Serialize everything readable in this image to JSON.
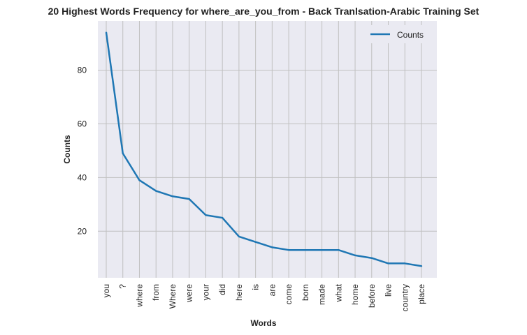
{
  "chart_data": {
    "type": "line",
    "title": "20 Highest Words Frequency for where_are_you_from - Back Tranlsation-Arabic Training Set",
    "xlabel": "Words",
    "ylabel": "Counts",
    "categories": [
      "you",
      "?",
      "where",
      "from",
      "Where",
      "were",
      "your",
      "did",
      "here",
      "is",
      "are",
      "come",
      "born",
      "made",
      "what",
      "home",
      "before",
      "live",
      "country",
      "place"
    ],
    "series": [
      {
        "name": "Counts",
        "values": [
          94,
          49,
          39,
          35,
          33,
          32,
          26,
          25,
          18,
          16,
          14,
          13,
          13,
          13,
          13,
          11,
          10,
          8,
          8,
          7
        ]
      }
    ],
    "yticks": [
      20,
      40,
      60,
      80
    ],
    "ylim": [
      2.65,
      98.35
    ],
    "grid": true,
    "legend_position": "top-right",
    "colors": {
      "line": "#1f77b4",
      "plot_bg": "#eaeaf2",
      "grid": "#c0c0c0"
    }
  }
}
